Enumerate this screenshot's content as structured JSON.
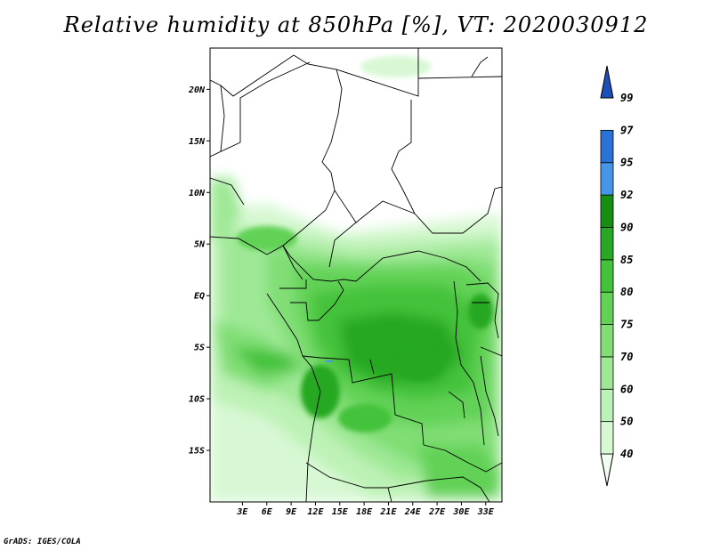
{
  "title": "Relative humidity at 850hPa [%], VT: 2020030912",
  "credit": "GrADS: IGES/COLA",
  "map": {
    "lon_range": [
      -1,
      35
    ],
    "lat_range": [
      -20,
      24
    ],
    "lat_ticks": [
      {
        "value": 20,
        "label": "20N"
      },
      {
        "value": 15,
        "label": "15N"
      },
      {
        "value": 10,
        "label": "10N"
      },
      {
        "value": 5,
        "label": "5N"
      },
      {
        "value": 0,
        "label": "EQ"
      },
      {
        "value": -5,
        "label": "5S"
      },
      {
        "value": -10,
        "label": "10S"
      },
      {
        "value": -15,
        "label": "15S"
      }
    ],
    "lon_ticks": [
      {
        "value": 3,
        "label": "3E"
      },
      {
        "value": 6,
        "label": "6E"
      },
      {
        "value": 9,
        "label": "9E"
      },
      {
        "value": 12,
        "label": "12E"
      },
      {
        "value": 15,
        "label": "15E"
      },
      {
        "value": 18,
        "label": "18E"
      },
      {
        "value": 21,
        "label": "21E"
      },
      {
        "value": 24,
        "label": "24E"
      },
      {
        "value": 27,
        "label": "27E"
      },
      {
        "value": 30,
        "label": "30E"
      },
      {
        "value": 33,
        "label": "33E"
      }
    ]
  },
  "colorbar": {
    "levels": [
      {
        "label": "40",
        "color": "#f2fdf1"
      },
      {
        "label": "50",
        "color": "#d8f8d4"
      },
      {
        "label": "60",
        "color": "#bdf2b6"
      },
      {
        "label": "70",
        "color": "#9ee895"
      },
      {
        "label": "75",
        "color": "#80de74"
      },
      {
        "label": "80",
        "color": "#62d256"
      },
      {
        "label": "85",
        "color": "#44c23a"
      },
      {
        "label": "90",
        "color": "#28a824"
      },
      {
        "label": "92",
        "color": "#168e14"
      },
      {
        "label": "95",
        "color": "#4596e6"
      },
      {
        "label": "97",
        "color": "#2a72d6"
      },
      {
        "label": "99",
        "color": "#1d4fb8"
      }
    ]
  }
}
